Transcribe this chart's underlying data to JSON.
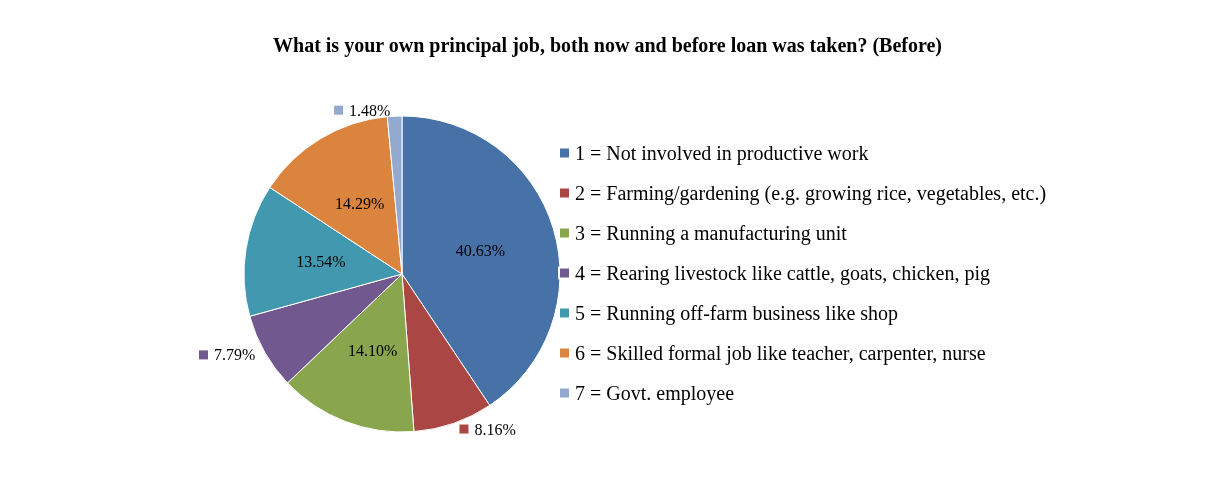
{
  "chart_data": {
    "type": "pie",
    "title": "What is your own principal job, both now and before loan was taken? (Before)",
    "categories": [
      "1 = Not involved in productive work",
      "2 = Farming/gardening (e.g. growing rice, vegetables, etc.)",
      "3 = Running a manufacturing unit",
      "4 = Rearing livestock like cattle, goats, chicken, pig",
      "5 = Running off-farm business like shop",
      "6 = Skilled formal job like teacher, carpenter, nurse",
      "7 = Govt. employee"
    ],
    "values": [
      40.63,
      8.16,
      14.1,
      7.79,
      13.54,
      14.29,
      1.48
    ],
    "value_labels": [
      "40.63%",
      "8.16%",
      "14.10%",
      "7.79%",
      "13.54%",
      "14.29%",
      "1.48%"
    ],
    "colors": [
      "#4672a8",
      "#aa4643",
      "#89a54e",
      "#71588f",
      "#4198af",
      "#db843d",
      "#93a9cf"
    ],
    "legend": "right"
  }
}
